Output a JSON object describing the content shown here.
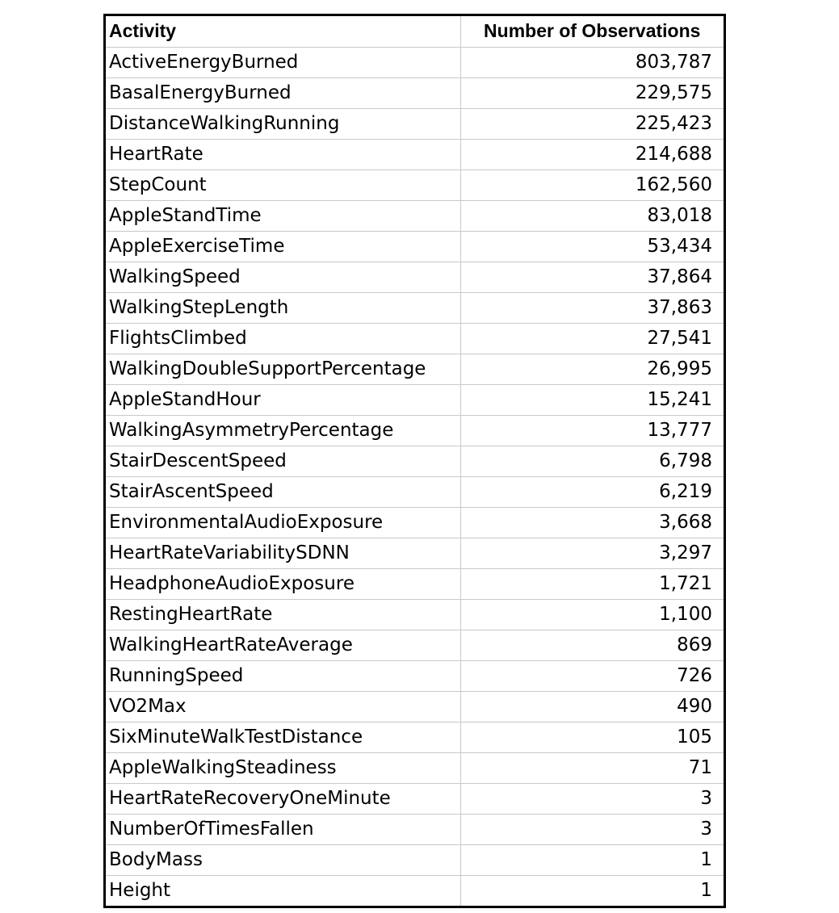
{
  "chart_data": {
    "type": "table",
    "columns": [
      "Activity",
      "Number of Observations"
    ],
    "rows": [
      {
        "activity": "ActiveEnergyBurned",
        "observations": "803,787"
      },
      {
        "activity": "BasalEnergyBurned",
        "observations": "229,575"
      },
      {
        "activity": "DistanceWalkingRunning",
        "observations": "225,423"
      },
      {
        "activity": "HeartRate",
        "observations": "214,688"
      },
      {
        "activity": "StepCount",
        "observations": "162,560"
      },
      {
        "activity": "AppleStandTime",
        "observations": "83,018"
      },
      {
        "activity": "AppleExerciseTime",
        "observations": "53,434"
      },
      {
        "activity": "WalkingSpeed",
        "observations": "37,864"
      },
      {
        "activity": "WalkingStepLength",
        "observations": "37,863"
      },
      {
        "activity": "FlightsClimbed",
        "observations": "27,541"
      },
      {
        "activity": "WalkingDoubleSupportPercentage",
        "observations": "26,995"
      },
      {
        "activity": "AppleStandHour",
        "observations": "15,241"
      },
      {
        "activity": "WalkingAsymmetryPercentage",
        "observations": "13,777"
      },
      {
        "activity": "StairDescentSpeed",
        "observations": "6,798"
      },
      {
        "activity": "StairAscentSpeed",
        "observations": "6,219"
      },
      {
        "activity": "EnvironmentalAudioExposure",
        "observations": "3,668"
      },
      {
        "activity": "HeartRateVariabilitySDNN",
        "observations": "3,297"
      },
      {
        "activity": "HeadphoneAudioExposure",
        "observations": "1,721"
      },
      {
        "activity": "RestingHeartRate",
        "observations": "1,100"
      },
      {
        "activity": "WalkingHeartRateAverage",
        "observations": "869"
      },
      {
        "activity": "RunningSpeed",
        "observations": "726"
      },
      {
        "activity": "VO2Max",
        "observations": "490"
      },
      {
        "activity": "SixMinuteWalkTestDistance",
        "observations": "105"
      },
      {
        "activity": "AppleWalkingSteadiness",
        "observations": "71"
      },
      {
        "activity": "HeartRateRecoveryOneMinute",
        "observations": "3"
      },
      {
        "activity": "NumberOfTimesFallen",
        "observations": "3"
      },
      {
        "activity": "BodyMass",
        "observations": "1"
      },
      {
        "activity": "Height",
        "observations": "1"
      }
    ]
  },
  "colors": {
    "border": "#000000",
    "gridline": "#c8c8c8",
    "background": "#ffffff",
    "text": "#000000"
  }
}
